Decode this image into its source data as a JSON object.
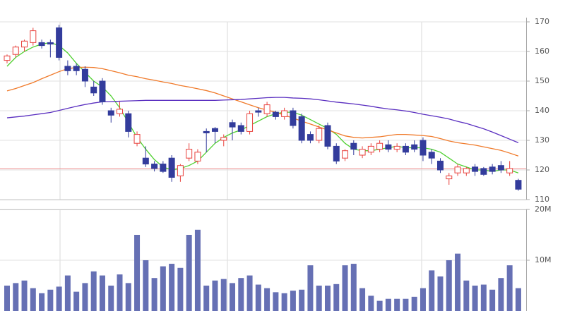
{
  "chart_data": [
    {
      "type": "candlestick",
      "open": [
        157,
        159,
        161.5,
        163,
        163,
        163,
        168,
        155,
        155,
        154,
        148,
        150,
        140,
        139,
        139,
        129,
        124,
        122,
        122,
        124,
        118,
        124,
        123,
        133,
        134,
        130,
        136,
        135,
        133,
        140,
        139,
        139.5,
        138,
        140,
        138,
        132,
        130,
        135,
        128,
        124,
        129,
        125,
        126,
        127,
        128.5,
        127,
        128,
        128.5,
        130,
        126,
        123,
        117,
        119,
        119,
        121,
        120.5,
        121,
        121.5,
        119,
        116.5
      ],
      "high": [
        159,
        162,
        164,
        168,
        164,
        164,
        169,
        157,
        156,
        155,
        150,
        151,
        141,
        143,
        140,
        133,
        128,
        123,
        123,
        125,
        122,
        129,
        127,
        134,
        134.5,
        132,
        137,
        136,
        140,
        141,
        143,
        140,
        141,
        141,
        139,
        133,
        135,
        136,
        129,
        127,
        130,
        128,
        129,
        130,
        130,
        129,
        129,
        130,
        131,
        127,
        124,
        119,
        122,
        121,
        122,
        121,
        122,
        123,
        123,
        117
      ],
      "low": [
        156,
        158,
        160,
        162,
        161,
        158,
        157,
        152,
        152,
        148,
        145,
        142,
        136,
        138,
        131,
        128,
        121,
        119.5,
        119,
        116,
        116,
        123,
        122,
        126,
        129,
        128,
        130,
        132,
        132,
        138,
        138,
        137,
        137,
        134,
        129,
        129,
        129,
        127,
        122,
        123,
        125,
        124,
        125,
        126,
        126,
        126,
        125,
        126,
        123,
        122,
        119,
        115,
        118,
        118,
        118,
        118,
        118.5,
        119,
        118,
        113
      ],
      "close": [
        158.5,
        161.5,
        163.5,
        167,
        162,
        162.5,
        158,
        153.5,
        153.5,
        150,
        146,
        143,
        138.5,
        140.5,
        133,
        132,
        122,
        120.5,
        119.5,
        117.5,
        121.5,
        127,
        126,
        132.5,
        133,
        131,
        134.5,
        133,
        139,
        139.5,
        142,
        138,
        140,
        135,
        130,
        130,
        134,
        128,
        123,
        126.5,
        127,
        127,
        128,
        129,
        127,
        128,
        126,
        127,
        125,
        124,
        120,
        118,
        121,
        120.5,
        119.5,
        118.5,
        119.5,
        120,
        120.5,
        113.5
      ],
      "up_color": "#e8413c",
      "down_color": "#333c9c",
      "lines": [
        {
          "color": "#4fd030",
          "values": [
            155,
            158,
            160,
            161.5,
            162.5,
            163,
            162,
            159.5,
            156,
            153,
            150,
            148,
            145,
            141,
            136,
            131,
            127,
            123.5,
            121,
            120,
            120.5,
            121.5,
            123,
            126,
            129,
            131,
            132.5,
            133.5,
            135,
            136.5,
            138,
            139,
            139.5,
            139.5,
            138.5,
            137,
            135.5,
            134,
            132,
            129,
            127,
            126.5,
            126.5,
            127,
            127.5,
            128,
            127.5,
            127.5,
            127.5,
            127,
            126,
            124,
            122,
            121,
            120,
            120,
            119.5,
            120,
            120,
            119
          ]
        },
        {
          "color": "#f07a2a",
          "values": [
            146.7,
            147.5,
            148.5,
            149.5,
            150.8,
            152,
            153.2,
            154.2,
            154.6,
            154.7,
            154.6,
            154.2,
            153.5,
            152.8,
            152,
            151.5,
            150.8,
            150.3,
            149.7,
            149.2,
            148.5,
            148,
            147.4,
            146.8,
            146,
            145,
            144,
            143,
            142,
            141,
            140.2,
            139.5,
            138.5,
            137.5,
            136.5,
            135.5,
            134.5,
            133.5,
            132.5,
            131.5,
            131,
            130.8,
            131,
            131.2,
            131.6,
            132,
            132,
            131.8,
            131.6,
            131.3,
            130.6,
            129.8,
            129.2,
            128.8,
            128.4,
            127.8,
            127.2,
            126.6,
            125.7,
            124.7
          ]
        },
        {
          "color": "#5a2fc0",
          "values": [
            137.6,
            137.9,
            138.2,
            138.6,
            139,
            139.4,
            140.1,
            140.8,
            141.5,
            142.1,
            142.6,
            143,
            143.1,
            143.2,
            143.3,
            143.4,
            143.5,
            143.5,
            143.5,
            143.5,
            143.5,
            143.5,
            143.5,
            143.5,
            143.5,
            143.6,
            143.7,
            143.8,
            144,
            144.2,
            144.4,
            144.5,
            144.5,
            144.3,
            144.2,
            144,
            143.7,
            143.3,
            142.9,
            142.6,
            142.3,
            141.9,
            141.5,
            141,
            140.6,
            140.3,
            139.9,
            139.4,
            138.8,
            138.3,
            137.8,
            137.2,
            136.4,
            135.7,
            134.8,
            133.9,
            132.8,
            131.6,
            130.4,
            129.2
          ]
        }
      ],
      "hline": {
        "value": 120.4,
        "color": "#f09a9a"
      },
      "ylim": [
        110,
        170
      ],
      "yticks": [
        170,
        160,
        150,
        140,
        130,
        120,
        110
      ],
      "grid": true
    },
    {
      "type": "bar",
      "values": [
        5.0,
        5.5,
        6.0,
        4.5,
        3.5,
        4.2,
        4.8,
        7.0,
        3.8,
        5.5,
        7.8,
        7.0,
        5.0,
        7.2,
        5.5,
        15.0,
        10.0,
        6.5,
        8.8,
        9.3,
        8.5,
        15.0,
        16.0,
        5.0,
        6.0,
        6.3,
        5.5,
        6.5,
        7.0,
        5.2,
        4.5,
        3.7,
        3.5,
        4.0,
        4.2,
        9.0,
        5.0,
        5.0,
        5.3,
        9.0,
        9.3,
        4.5,
        3.0,
        2.0,
        2.4,
        2.4,
        2.4,
        2.8,
        4.5,
        8.0,
        6.8,
        10.0,
        11.3,
        6.0,
        5.0,
        5.2,
        4.2,
        6.5,
        9.0,
        4.5
      ],
      "color": "#6670b4",
      "ylim": [
        0,
        20
      ],
      "yticks": [
        {
          "value": 20,
          "label": "20M"
        },
        {
          "value": 10,
          "label": "10M"
        }
      ],
      "grid": true
    }
  ]
}
